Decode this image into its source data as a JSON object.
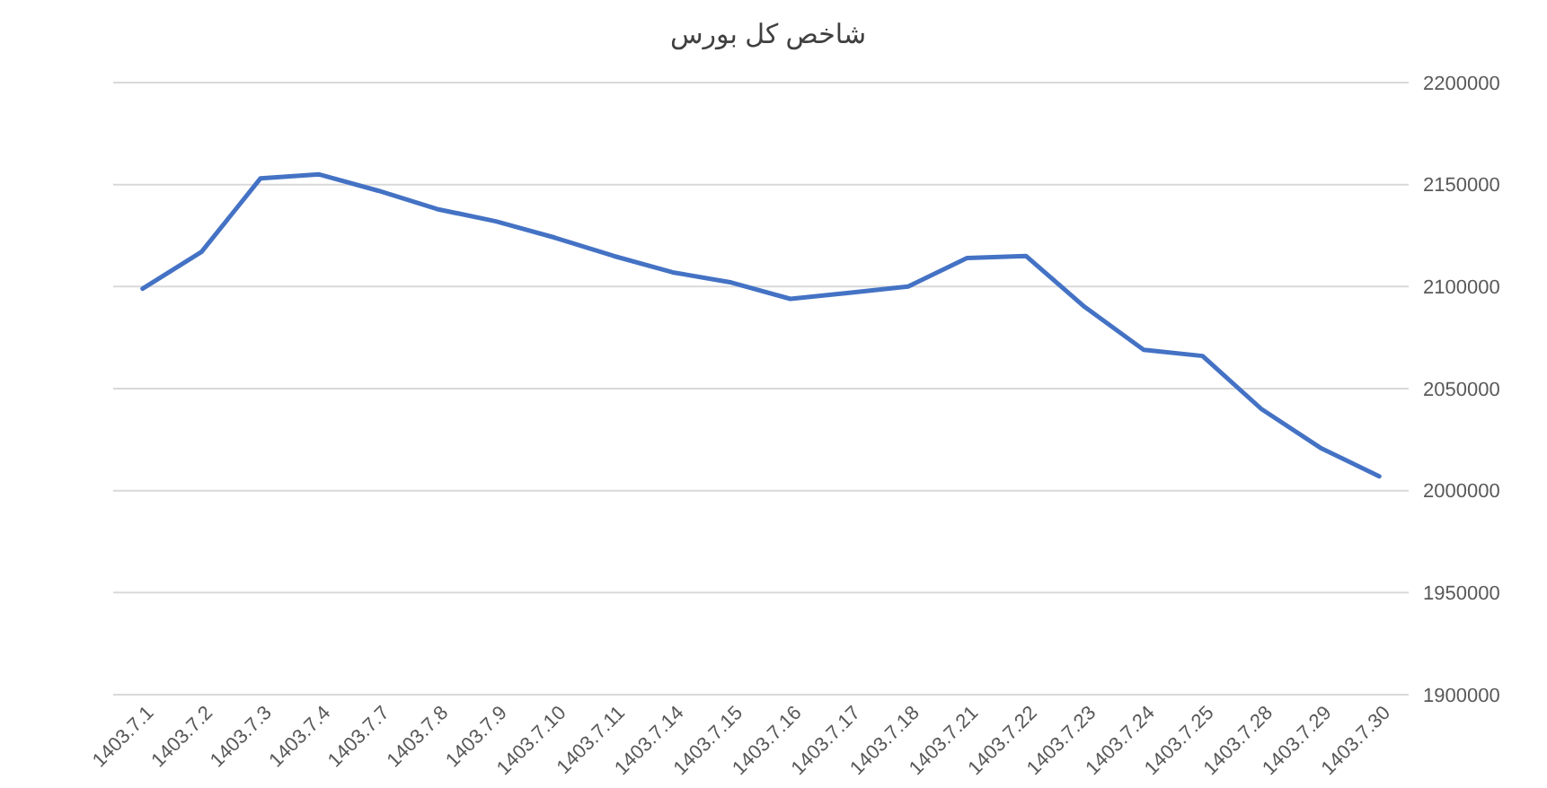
{
  "chart_data": {
    "type": "line",
    "title": "شاخص کل بورس",
    "categories": [
      "1403.7.1",
      "1403.7.2",
      "1403.7.3",
      "1403.7.4",
      "1403.7.7",
      "1403.7.8",
      "1403.7.9",
      "1403.7.10",
      "1403.7.11",
      "1403.7.14",
      "1403.7.15",
      "1403.7.16",
      "1403.7.17",
      "1403.7.18",
      "1403.7.21",
      "1403.7.22",
      "1403.7.23",
      "1403.7.24",
      "1403.7.25",
      "1403.7.28",
      "1403.7.29",
      "1403.7.30"
    ],
    "series": [
      {
        "color": "#4472c4",
        "values": [
          2099000,
          2117000,
          2153000,
          2155000,
          2147000,
          2138000,
          2132000,
          2124000,
          2115000,
          2107000,
          2102000,
          2094000,
          2097000,
          2100000,
          2114000,
          2115000,
          2090000,
          2069000,
          2066000,
          2040000,
          2021000,
          2007000
        ]
      }
    ],
    "ylim": [
      1900000,
      2200000
    ],
    "yticks": [
      1900000,
      1950000,
      2000000,
      2050000,
      2100000,
      2150000,
      2200000
    ],
    "grid": "y",
    "marker": "none",
    "line_style": "solid"
  }
}
